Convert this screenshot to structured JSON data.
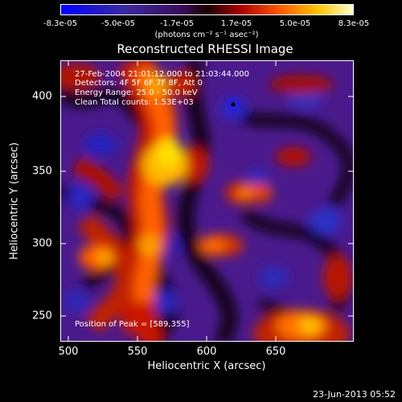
{
  "colorbar": {
    "ticks": [
      "-8.3e-05",
      "-5.0e-05",
      "-1.7e-05",
      "1.7e-05",
      "5.0e-05",
      "8.3e-05"
    ],
    "label": "(photons cm⁻² s⁻¹ asec⁻²)"
  },
  "title": "Reconstructed RHESSI Image",
  "info": {
    "time": "27-Feb-2004 21:01:12.000 to 21:03:44.000",
    "detectors": "Detectors: 4F 5F 6F 7F 8F, Att 0",
    "energy": "Energy Range: 25.0 - 50.0 keV",
    "clean": "Clean     Total counts: 1.53E+03",
    "peak": "Position of Peak = [589,355]"
  },
  "axes": {
    "xlabel": "Heliocentric X (arcsec)",
    "ylabel": "Heliocentric Y (arcsec)",
    "xticks": [
      "500",
      "550",
      "600",
      "650"
    ],
    "yticks": [
      "400",
      "350",
      "300",
      "250"
    ]
  },
  "footer": {
    "date": "23-Jun-2013 05:52"
  }
}
